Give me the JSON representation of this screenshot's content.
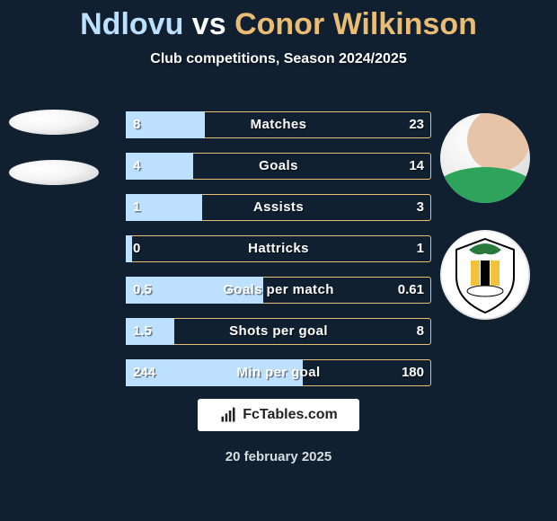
{
  "title": {
    "player1": "Ndlovu",
    "vs": "vs",
    "player2": "Conor Wilkinson",
    "player1_color": "#bde0ff",
    "player2_color": "#e9bd74",
    "vs_color": "#ffffff",
    "fontsize": 34
  },
  "subtitle": "Club competitions, Season 2024/2025",
  "outline_color": "#e9bd74",
  "fill_color": "#bde0ff",
  "background_color": "#102030",
  "bars": [
    {
      "label": "Matches",
      "left_val": "8",
      "right_val": "23",
      "fill_pct": 26
    },
    {
      "label": "Goals",
      "left_val": "4",
      "right_val": "14",
      "fill_pct": 22
    },
    {
      "label": "Assists",
      "left_val": "1",
      "right_val": "3",
      "fill_pct": 25
    },
    {
      "label": "Hattricks",
      "left_val": "0",
      "right_val": "1",
      "fill_pct": 2
    },
    {
      "label": "Goals per match",
      "left_val": "0.5",
      "right_val": "0.61",
      "fill_pct": 45
    },
    {
      "label": "Shots per goal",
      "left_val": "1.5",
      "right_val": "8",
      "fill_pct": 16
    },
    {
      "label": "Min per goal",
      "left_val": "244",
      "right_val": "180",
      "fill_pct": 58
    }
  ],
  "footer_brand": "FcTables.com",
  "footer_date": "20 february 2025"
}
